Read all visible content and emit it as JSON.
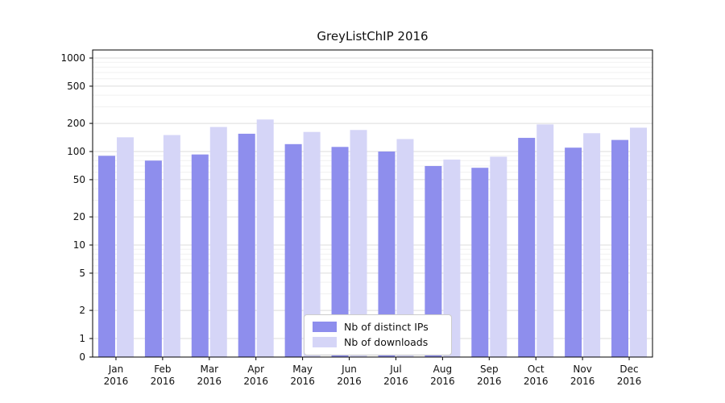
{
  "chart_data": {
    "type": "bar",
    "title": "GreyListChIP 2016",
    "year": "2016",
    "categories": [
      "Jan",
      "Feb",
      "Mar",
      "Apr",
      "May",
      "Jun",
      "Jul",
      "Aug",
      "Sep",
      "Oct",
      "Nov",
      "Dec"
    ],
    "series": [
      {
        "key": "distinct-ips",
        "name": "Nb of distinct IPs",
        "color": "#8e8eed",
        "values": [
          90,
          80,
          93,
          155,
          120,
          112,
          100,
          70,
          67,
          140,
          110,
          133
        ]
      },
      {
        "key": "downloads",
        "name": "Nb of downloads",
        "color": "#d5d5f7",
        "values": [
          142,
          150,
          183,
          220,
          162,
          170,
          136,
          82,
          88,
          195,
          157,
          180
        ]
      }
    ],
    "yticks": [
      0,
      1,
      2,
      5,
      10,
      20,
      50,
      100,
      200,
      500,
      1000
    ],
    "minor_ticks": [
      3,
      4,
      6,
      7,
      8,
      9,
      30,
      40,
      60,
      70,
      80,
      90,
      300,
      400,
      600,
      700,
      800,
      900
    ],
    "yscale": "log",
    "ylim": [
      0,
      1200
    ],
    "xlabel": "",
    "ylabel": "",
    "grid": "horizontal",
    "legend_position": "lower center inside"
  }
}
